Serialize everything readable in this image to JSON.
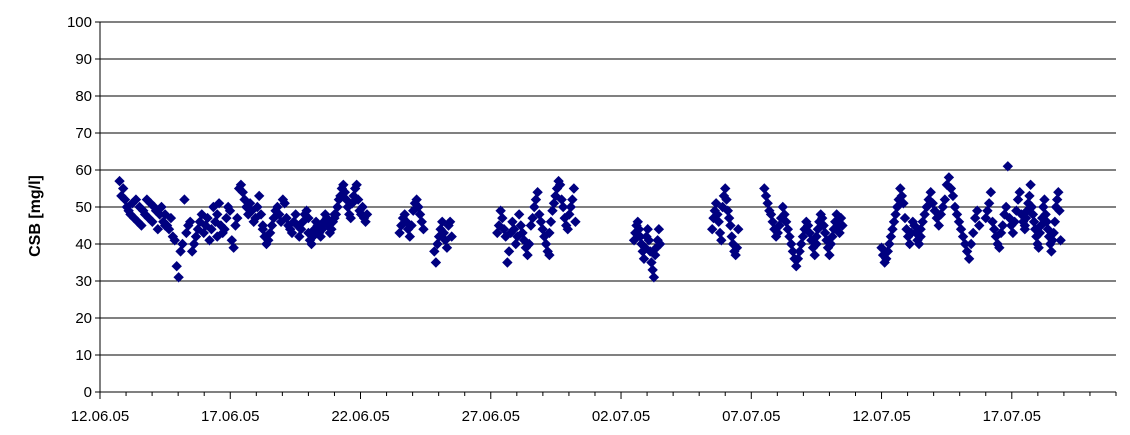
{
  "chart_data": {
    "type": "scatter",
    "title": "",
    "xlabel": "",
    "ylabel": "CSB [mg/l]",
    "ylim": [
      0,
      100
    ],
    "yticks": [
      0,
      10,
      20,
      30,
      40,
      50,
      60,
      70,
      80,
      90,
      100
    ],
    "xlim": [
      "2005-06-12",
      "2005-07-21"
    ],
    "xtick_labels": [
      "12.06.05",
      "17.06.05",
      "22.06.05",
      "27.06.05",
      "02.07.05",
      "07.07.05",
      "12.07.05",
      "17.07.05"
    ],
    "grid": "horizontal",
    "legend": "none",
    "marker": "diamond",
    "marker_color": "#000080",
    "series": [
      {
        "clusters": [
          {
            "from": "2005-06-12T18:00",
            "to": "2005-06-14T12:00",
            "values": [
              57,
              53,
              55,
              52,
              50,
              49,
              48,
              51,
              47,
              52,
              46,
              50,
              45,
              49,
              48,
              52,
              47,
              51,
              46,
              50,
              49,
              44,
              48,
              50,
              46,
              45
            ]
          },
          {
            "from": "2005-06-14T12:00",
            "to": "2005-06-16T12:00",
            "values": [
              48,
              45,
              44,
              47,
              42,
              41,
              34,
              31,
              38,
              40,
              52,
              43,
              45,
              46,
              38,
              40,
              42,
              44,
              46,
              48,
              43,
              45,
              47,
              41,
              44,
              50,
              46,
              42
            ]
          },
          {
            "from": "2005-06-16T12:00",
            "to": "2005-06-18T06:00",
            "values": [
              48,
              51,
              45,
              43,
              44,
              47,
              50,
              49,
              41,
              39,
              45,
              47,
              55,
              56,
              54,
              52,
              50,
              48,
              51,
              49,
              46,
              47,
              50,
              53,
              48,
              45
            ]
          },
          {
            "from": "2005-06-18T06:00",
            "to": "2005-06-20T00:00",
            "values": [
              44,
              42,
              40,
              41,
              43,
              45,
              47,
              49,
              50,
              48,
              46,
              52,
              51,
              47,
              45,
              44,
              43,
              46,
              48,
              45,
              42,
              44,
              46,
              48,
              49,
              47
            ]
          },
          {
            "from": "2005-06-20T00:00",
            "to": "2005-06-21T00:00",
            "values": [
              43,
              41,
              40,
              42,
              44,
              46,
              45,
              43,
              42,
              44,
              46,
              48,
              47,
              45,
              43,
              44,
              46,
              48
            ]
          },
          {
            "from": "2005-06-21T00:00",
            "to": "2005-06-22T06:00",
            "values": [
              47,
              48,
              50,
              52,
              53,
              55,
              56,
              54,
              52,
              50,
              48,
              47,
              51,
              53,
              55,
              56,
              52,
              49,
              48,
              50,
              47,
              46,
              48
            ]
          },
          {
            "from": "2005-06-23T12:00",
            "to": "2005-06-24T10:00",
            "values": [
              43,
              45,
              47,
              48,
              46,
              44,
              42,
              45,
              49,
              51,
              52,
              50,
              48,
              46,
              44
            ]
          },
          {
            "from": "2005-06-24T20:00",
            "to": "2005-06-25T12:00",
            "values": [
              38,
              35,
              40,
              42,
              44,
              46,
              43,
              41,
              39,
              45,
              46,
              42
            ]
          },
          {
            "from": "2005-06-27T06:00",
            "to": "2005-06-29T06:00",
            "values": [
              43,
              45,
              49,
              47,
              44,
              42,
              35,
              38,
              43,
              46,
              44,
              40,
              42,
              48,
              45,
              43,
              41,
              39,
              37,
              40,
              45,
              47,
              50,
              52,
              54,
              48,
              46,
              44,
              42,
              40,
              38,
              37
            ]
          },
          {
            "from": "2005-06-29T06:00",
            "to": "2005-06-30T06:00",
            "values": [
              43,
              46,
              49,
              51,
              53,
              55,
              57,
              56,
              52,
              50,
              47,
              45,
              44,
              48,
              50,
              52,
              55,
              46
            ]
          },
          {
            "from": "2005-07-02T12:00",
            "to": "2005-07-03T12:00",
            "values": [
              41,
              43,
              45,
              46,
              44,
              42,
              40,
              38,
              36,
              39,
              42,
              44,
              41,
              38,
              35,
              33,
              31,
              37,
              39,
              41,
              44,
              40
            ]
          },
          {
            "from": "2005-07-05T12:00",
            "to": "2005-07-06T12:00",
            "values": [
              44,
              47,
              49,
              51,
              48,
              46,
              43,
              41,
              50,
              53,
              55,
              52,
              49,
              47,
              45,
              42,
              40,
              38,
              37,
              39,
              44
            ]
          },
          {
            "from": "2005-07-07T12:00",
            "to": "2005-07-09T12:00",
            "values": [
              55,
              53,
              51,
              49,
              48,
              46,
              44,
              42,
              43,
              45,
              47,
              50,
              48,
              46,
              44,
              42,
              40,
              38,
              36,
              34,
              36,
              38,
              40,
              42,
              44,
              46,
              45,
              43,
              41,
              39,
              37,
              40
            ]
          },
          {
            "from": "2005-07-09T12:00",
            "to": "2005-07-10T12:00",
            "values": [
              42,
              44,
              46,
              48,
              47,
              45,
              43,
              41,
              39,
              37,
              40,
              42,
              44,
              46,
              48,
              45,
              43,
              47,
              45
            ]
          },
          {
            "from": "2005-07-12T00:00",
            "to": "2005-07-13T12:00",
            "values": [
              39,
              37,
              35,
              36,
              38,
              40,
              42,
              44,
              46,
              48,
              50,
              52,
              55,
              53,
              51,
              47,
              44,
              42,
              40,
              43,
              46,
              45,
              43,
              41,
              40,
              42
            ]
          },
          {
            "from": "2005-07-13T12:00",
            "to": "2005-07-15T18:00",
            "values": [
              44,
              46,
              48,
              50,
              52,
              54,
              51,
              49,
              47,
              45,
              48,
              50,
              52,
              56,
              58,
              55,
              53,
              50,
              48,
              46,
              44,
              42,
              40,
              38,
              36,
              40,
              43,
              47,
              49,
              45
            ]
          },
          {
            "from": "2005-07-16T00:00",
            "to": "2005-07-17T12:00",
            "values": [
              47,
              49,
              51,
              54,
              46,
              44,
              42,
              40,
              39,
              43,
              45,
              48,
              50,
              61,
              47,
              45,
              43,
              46,
              49,
              52,
              54,
              48,
              46,
              44
            ]
          },
          {
            "from": "2005-07-17T12:00",
            "to": "2005-07-18T21:00",
            "values": [
              45,
              47,
              49,
              51,
              53,
              56,
              50,
              48,
              46,
              44,
              42,
              40,
              39,
              43,
              45,
              47,
              50,
              52,
              48,
              46,
              44,
              42,
              40,
              38,
              41,
              43,
              46,
              50,
              52,
              54,
              49,
              41
            ]
          }
        ]
      }
    ]
  }
}
